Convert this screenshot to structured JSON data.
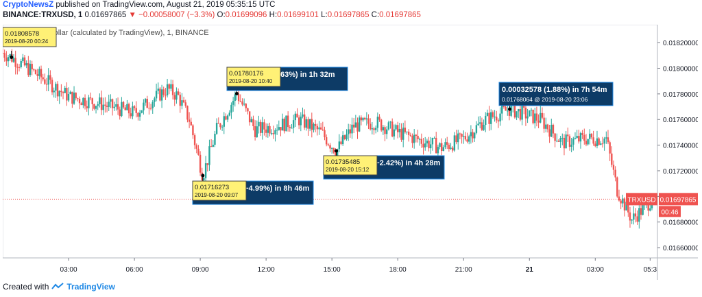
{
  "header": {
    "brand": "CryptoNewsZ",
    "published": " published on TradingView.com, August 21, 2019 05:35:15 UTC",
    "symbol": "BINANCE:TRXUSD, 1",
    "price": "0.01697865",
    "change_arrow": "▼",
    "change": "−0.00058007 (−3.3%)",
    "o_label": "O:",
    "o_value": "0.01699096",
    "h_label": "H:",
    "h_value": "0.01699101",
    "l_label": "L:",
    "l_value": "0.01697865",
    "c_label": "C:",
    "c_value": "0.01697865"
  },
  "legend_text": "TRON / US Dollar (calculated by TradingView), 1, BINANCE",
  "footer": {
    "created_with": "Created with",
    "tv_logo": "TradingView"
  },
  "colors": {
    "up": "#26a69a",
    "down": "#ef5350",
    "tag_yellow": "#fff176",
    "tag_blue": "#0d3b66",
    "price_line": "#ef5350",
    "curve": "#ffe0b2"
  },
  "chart_data": {
    "type": "candlestick",
    "symbol": "TRXUSD",
    "interval": "1",
    "x_ticks": [
      "03:00",
      "06:00",
      "09:00",
      "12:00",
      "15:00",
      "18:00",
      "21:00",
      "21",
      "03:00",
      "05:3"
    ],
    "y_ticks": [
      "0.01820000",
      "0.01800000",
      "0.01780000",
      "0.01760000",
      "0.01740000",
      "0.01720000",
      "0.01700000",
      "0.01680000",
      "0.01660000"
    ],
    "ylim": [
      0.01652,
      0.01834
    ],
    "last_price": {
      "label": "TRXUSD",
      "value": "0.01697865",
      "countdown": "00:46"
    },
    "trend": [
      [
        "2019-08-20 00:00",
        0.01812
      ],
      [
        "2019-08-20 00:24",
        0.018085
      ],
      [
        "2019-08-20 01:30",
        0.01796
      ],
      [
        "2019-08-20 03:00",
        0.01778
      ],
      [
        "2019-08-20 04:30",
        0.01772
      ],
      [
        "2019-08-20 06:00",
        0.01765
      ],
      [
        "2019-08-20 07:30",
        0.01784
      ],
      [
        "2019-08-20 08:00",
        0.01778
      ],
      [
        "2019-08-20 08:30",
        0.0176
      ],
      [
        "2019-08-20 09:07",
        0.017163
      ],
      [
        "2019-08-20 09:45",
        0.01752
      ],
      [
        "2019-08-20 10:40",
        0.017802
      ],
      [
        "2019-08-20 11:30",
        0.01752
      ],
      [
        "2019-08-20 12:30",
        0.01755
      ],
      [
        "2019-08-20 13:30",
        0.0176
      ],
      [
        "2019-08-20 14:30",
        0.0175
      ],
      [
        "2019-08-20 15:12",
        0.017355
      ],
      [
        "2019-08-20 16:00",
        0.01755
      ],
      [
        "2019-08-20 17:00",
        0.01758
      ],
      [
        "2019-08-20 18:00",
        0.0175
      ],
      [
        "2019-08-20 19:00",
        0.01744
      ],
      [
        "2019-08-20 20:00",
        0.01738
      ],
      [
        "2019-08-20 21:00",
        0.01745
      ],
      [
        "2019-08-20 22:00",
        0.0176
      ],
      [
        "2019-08-20 23:06",
        0.017681
      ],
      [
        "2019-08-21 00:30",
        0.0176
      ],
      [
        "2019-08-21 01:30",
        0.01742
      ],
      [
        "2019-08-21 02:30",
        0.01745
      ],
      [
        "2019-08-21 03:30",
        0.01745
      ],
      [
        "2019-08-21 04:00",
        0.01705
      ],
      [
        "2019-08-21 04:40",
        0.01682
      ],
      [
        "2019-08-21 05:10",
        0.0169
      ],
      [
        "2019-08-21 05:35",
        0.016979
      ]
    ],
    "annotations": [
      {
        "price": "0.01808578",
        "time": "2019-08-20 00:24",
        "value": 0.018086
      },
      {
        "price": "0.01716273",
        "time": "2019-08-20 09:07",
        "change": "−0.00092305 (−4.99%) in 8h 46m",
        "at": "2019-08-20  09:10",
        "value": 0.017163
      },
      {
        "price": "0.01780176",
        "time": "2019-08-20 10:40",
        "change": "0.00063903 (3.63%) in 1h 32m",
        "at": "2019-08-20  10:39",
        "value": 0.017802
      },
      {
        "price": "0.01735485",
        "time": "2019-08-20 15:12",
        "change": "−0.00044691 (−2.42%) in 4h 28m",
        "at": "2019-08-20  15:08",
        "value": 0.017355
      },
      {
        "change": "0.00032578 (1.88%) in 7h 54m",
        "price": "0.01768064",
        "at": "2019-08-20  23:06",
        "value": 0.017681
      }
    ]
  }
}
